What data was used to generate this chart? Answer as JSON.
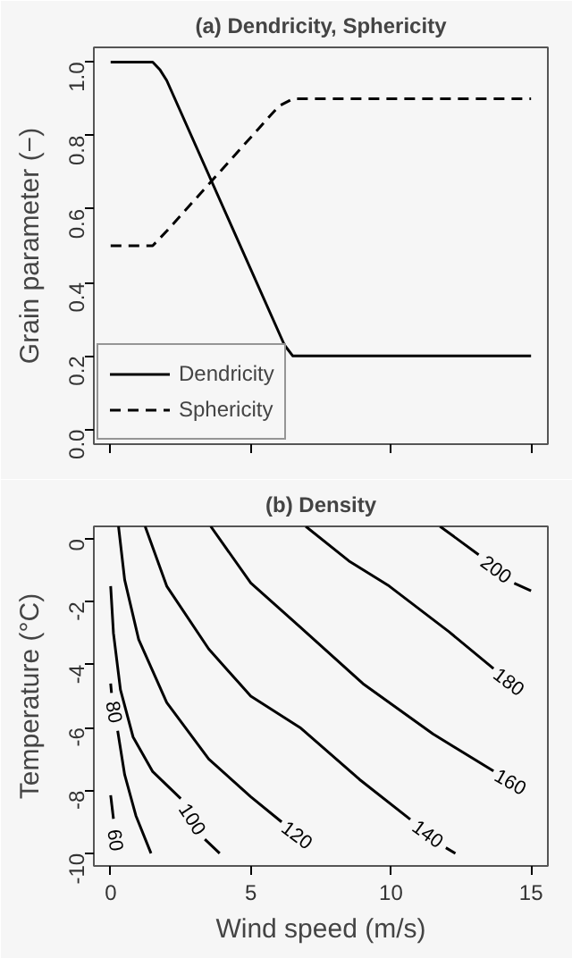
{
  "chart_data": [
    {
      "type": "line",
      "title": "(a) Dendricity, Sphericity",
      "ylabel": "Grain parameter (−)",
      "xlim": [
        -0.6,
        15.6
      ],
      "xticks": [
        0,
        5,
        10,
        15
      ],
      "ylim": [
        -0.04,
        1.04
      ],
      "yticks": [
        {
          "value": 0,
          "label": "0.0"
        },
        0.2,
        0.4,
        0.6,
        0.8,
        {
          "value": 1,
          "label": "1.0"
        }
      ],
      "tick_labels": "y",
      "legend": "bottom left",
      "series": [
        {
          "name": "Dendricity",
          "color": "#000000",
          "line_style": "solid",
          "x": [
            0,
            1.5,
            1.75,
            2,
            6.2,
            6.5,
            15
          ],
          "values": [
            1,
            1,
            0.98,
            0.95,
            0.23,
            0.2,
            0.2
          ]
        },
        {
          "name": "Sphericity",
          "color": "#000000",
          "line_style": "dashed",
          "x": [
            0,
            1.5,
            2,
            6,
            6.5,
            15
          ],
          "values": [
            0.5,
            0.5,
            0.54,
            0.88,
            0.9,
            0.9
          ]
        }
      ]
    },
    {
      "type": "line",
      "title": "(b) Density",
      "xlabel": "Wind speed (m/s)",
      "ylabel": "Temperature (°C)",
      "xlim": [
        -0.6,
        15.6
      ],
      "xticks": [
        0,
        5,
        10,
        15
      ],
      "ylim": [
        -10.4,
        0.4
      ],
      "yticks": [
        0,
        -2,
        -4,
        -6,
        -8,
        -10
      ],
      "legend": false,
      "series": [
        {
          "name": "60",
          "color": "#000000",
          "line_style": "solid",
          "x": [
            0,
            0.1
          ],
          "values": [
            -8.15,
            -8.9
          ]
        },
        {
          "name": "80",
          "color": "#000000",
          "line_style": "solid",
          "x": [
            0,
            0.03,
            null,
            0.25,
            0.5,
            0.9,
            1.44
          ],
          "values": [
            -4.6,
            -4.9,
            null,
            -6.1,
            -7.5,
            -8.8,
            -10
          ]
        },
        {
          "name": "100",
          "color": "#000000",
          "line_style": "solid",
          "x": [
            0,
            0.1,
            0.35,
            0.8,
            1.5,
            2.5,
            null,
            3.36,
            3.89
          ],
          "values": [
            -1.5,
            -3,
            -4.8,
            -6.3,
            -7.4,
            -8.26,
            null,
            -9.55,
            -10
          ]
        },
        {
          "name": "120",
          "color": "#000000",
          "line_style": "solid",
          "x": [
            0.28,
            0.5,
            1.0,
            2.0,
            3.5,
            5.0,
            6.1
          ],
          "values": [
            0.4,
            -1.3,
            -3.2,
            -5.2,
            -7.0,
            -8.2,
            -9.0
          ]
        },
        {
          "name": "140",
          "color": "#000000",
          "line_style": "solid",
          "x": [
            1.23,
            2.0,
            3.5,
            5.0,
            6.76,
            8.88,
            10.69,
            null,
            11.96,
            12.3
          ],
          "values": [
            0.4,
            -1.5,
            -3.5,
            -5.0,
            -6.0,
            -7.65,
            -8.92,
            null,
            -9.82,
            -10
          ]
        },
        {
          "name": "160",
          "color": "#000000",
          "line_style": "solid",
          "x": [
            3.57,
            5.0,
            6.76,
            9.0,
            11.5,
            13.66
          ],
          "values": [
            0.4,
            -1.4,
            -2.8,
            -4.6,
            -6.2,
            -7.38
          ]
        },
        {
          "name": "180",
          "color": "#000000",
          "line_style": "solid",
          "x": [
            6.96,
            8.5,
            9.94,
            12.07,
            13.66
          ],
          "values": [
            0.4,
            -0.7,
            -1.5,
            -2.95,
            -4.12
          ]
        },
        {
          "name": "200",
          "color": "#000000",
          "line_style": "solid",
          "x": [
            11.75,
            13.13,
            null,
            14.4,
            15
          ],
          "values": [
            0.4,
            -0.5,
            null,
            -1.41,
            -1.65
          ]
        }
      ]
    }
  ]
}
